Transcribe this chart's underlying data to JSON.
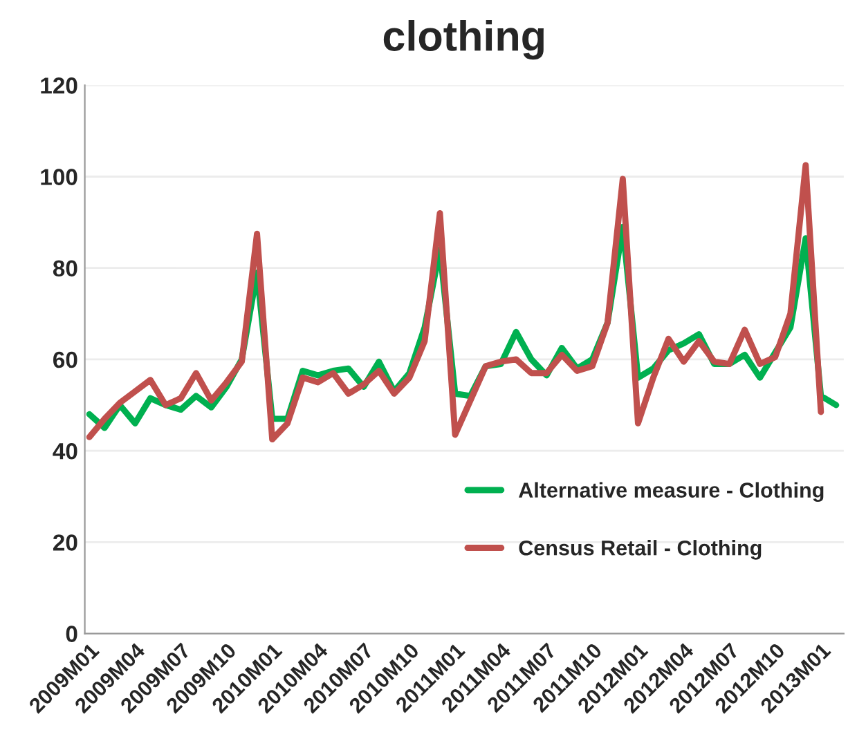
{
  "chart_data": {
    "type": "line",
    "title": "clothing",
    "categories": [
      "2009M01",
      null,
      null,
      "2009M04",
      null,
      null,
      "2009M07",
      null,
      null,
      "2009M10",
      null,
      null,
      "2010M01",
      null,
      null,
      "2010M04",
      null,
      null,
      "2010M07",
      null,
      null,
      "2010M10",
      null,
      null,
      "2011M01",
      null,
      null,
      "2011M04",
      null,
      null,
      "2011M07",
      null,
      null,
      "2011M10",
      null,
      null,
      "2012M01",
      null,
      null,
      "2012M04",
      null,
      null,
      "2012M07",
      null,
      null,
      "2012M10",
      null,
      null,
      "2013M01",
      null
    ],
    "series": [
      {
        "name": "Alternative measure - Clothing",
        "color": "#00b050",
        "values": [
          48,
          45,
          50,
          46,
          51.5,
          50,
          49,
          52,
          49.5,
          54,
          60,
          79,
          47,
          47,
          57.5,
          56.5,
          57.5,
          58,
          54,
          59.5,
          53,
          57,
          67,
          84,
          52.5,
          52,
          58.5,
          59,
          66,
          60,
          56.5,
          62.5,
          58,
          60,
          68,
          89,
          56,
          58,
          62,
          63.5,
          65.5,
          59,
          59,
          61,
          56,
          61.5,
          67,
          86.5,
          52,
          50
        ]
      },
      {
        "name": "Census Retail - Clothing",
        "color": "#c0504d",
        "values": [
          43,
          47,
          50.5,
          53,
          55.5,
          50,
          51.5,
          57,
          51,
          55,
          59.5,
          87.5,
          42.5,
          46,
          56,
          55,
          57,
          52.5,
          54.5,
          57.5,
          52.5,
          56,
          64,
          92,
          43.5,
          51,
          58.5,
          59.5,
          60,
          57,
          57,
          61,
          57.5,
          58.5,
          68,
          99.5,
          46,
          56,
          64.5,
          59.5,
          64,
          59.5,
          59,
          66.5,
          59,
          60.5,
          70,
          102.5,
          48.5,
          null
        ]
      }
    ],
    "ylim": [
      0,
      120
    ],
    "yticks": [
      0,
      20,
      40,
      60,
      80,
      100,
      120
    ],
    "grid": "y",
    "legend": "bottom right",
    "marker": "none",
    "line_style": "solid"
  }
}
